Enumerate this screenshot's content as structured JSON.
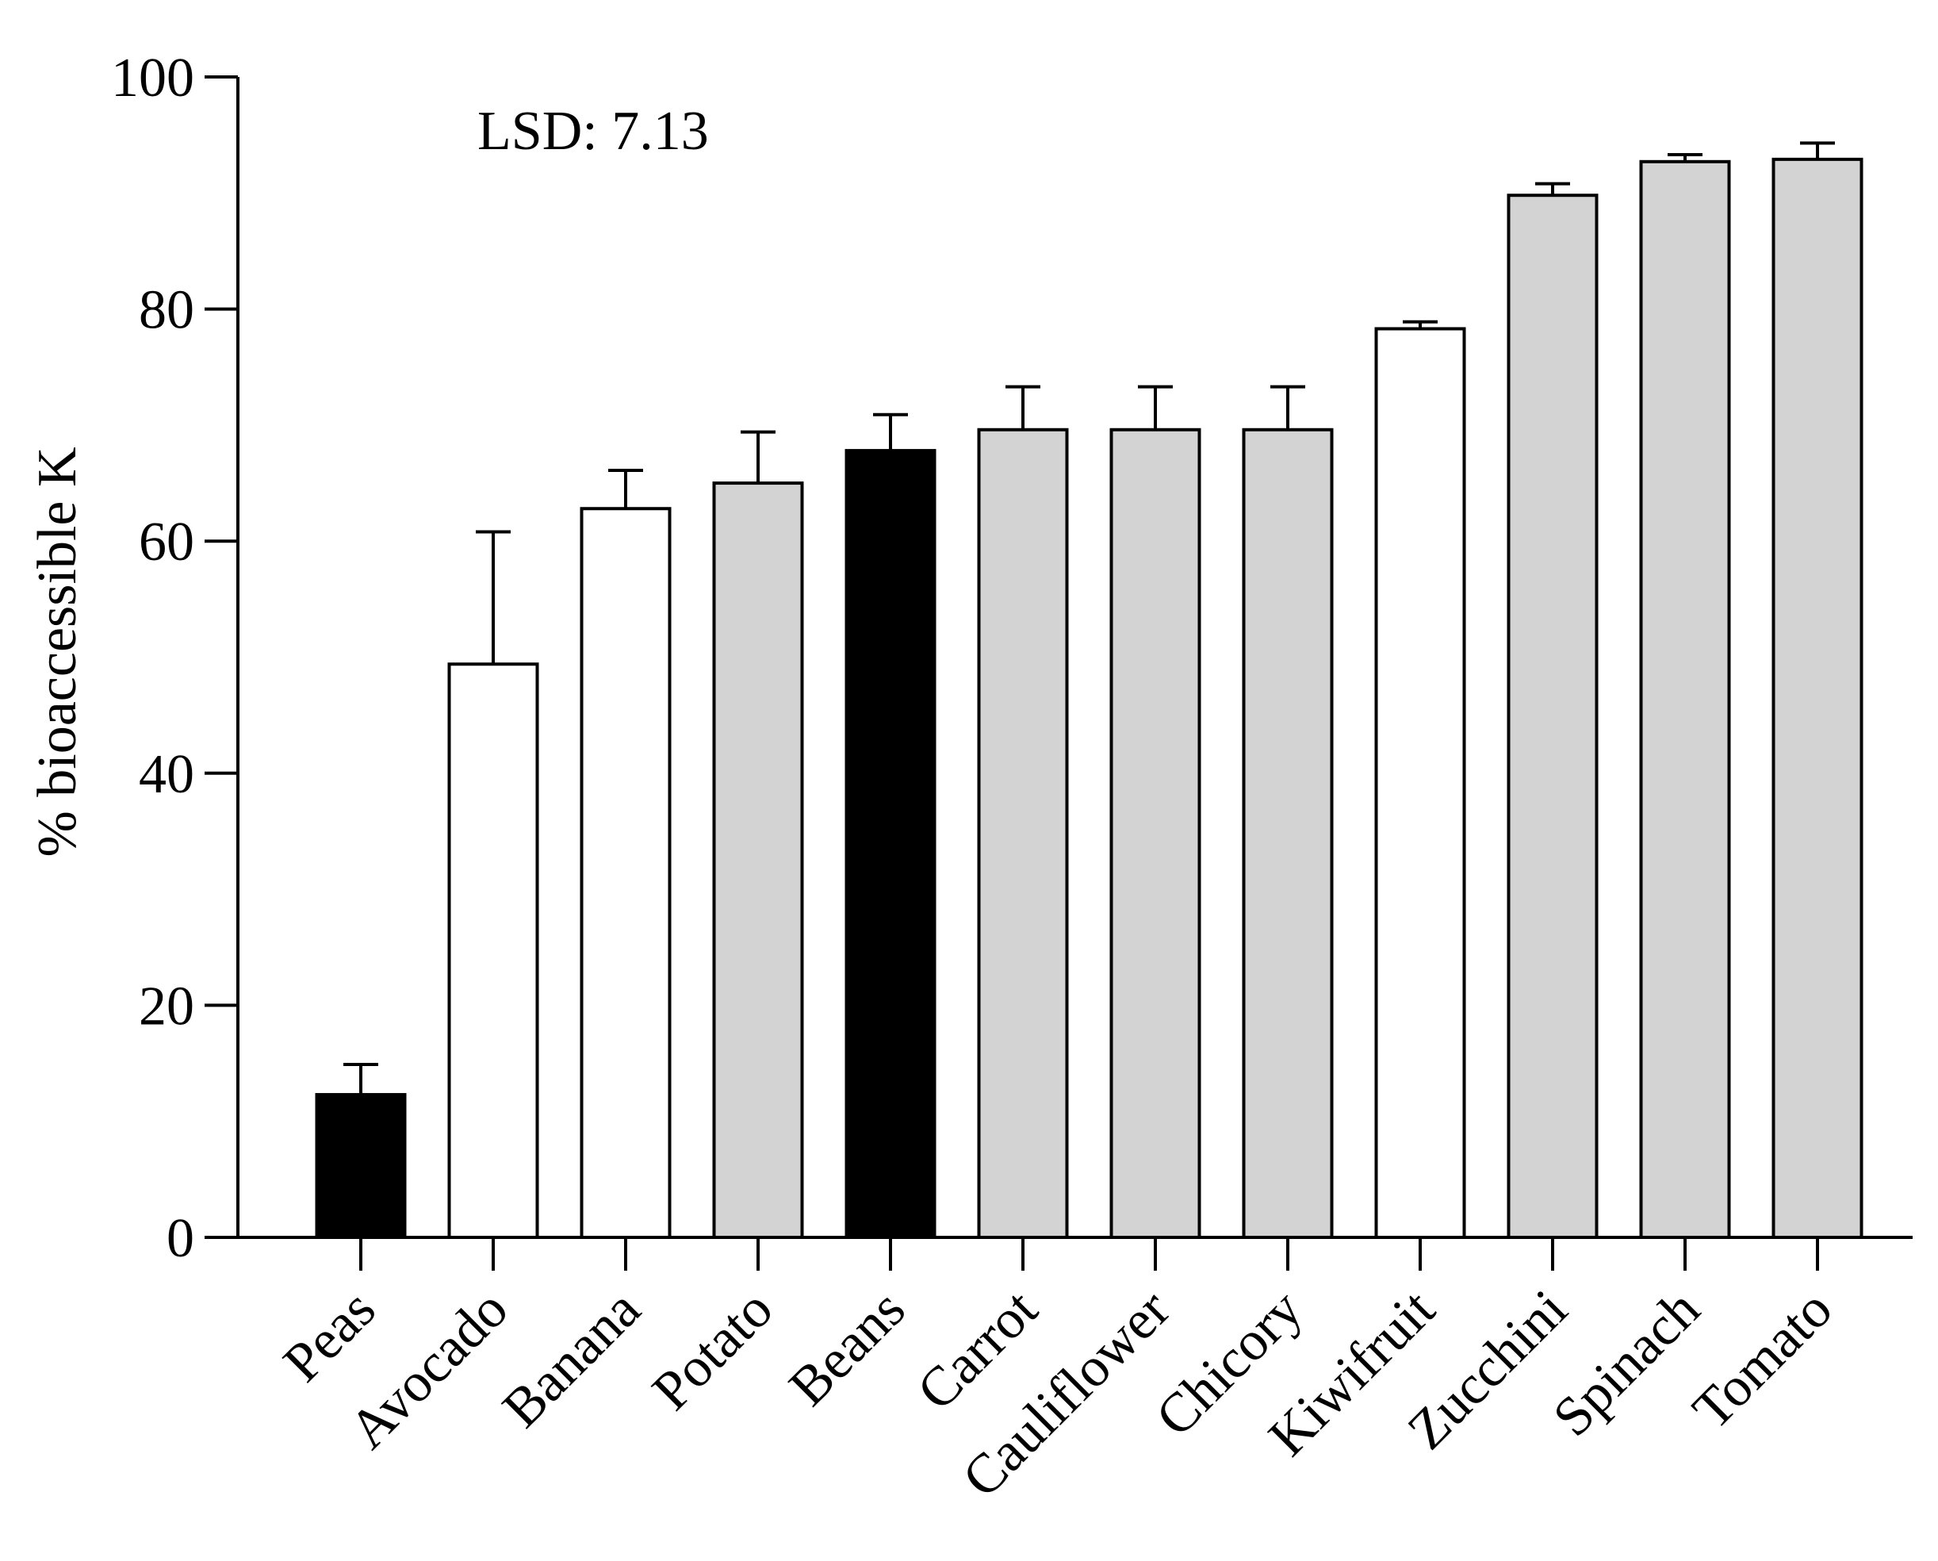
{
  "chart_data": {
    "type": "bar",
    "title": "",
    "xlabel": "",
    "ylabel": "% bioaccessible K",
    "ylim": [
      0,
      100
    ],
    "yticks": [
      0,
      20,
      40,
      60,
      80,
      100
    ],
    "grid": false,
    "legend": "none",
    "annotation": "LSD: 7.13",
    "categories": [
      "Peas",
      "Avocado",
      "Banana",
      "Potato",
      "Beans",
      "Carrot",
      "Cauliflower",
      "Chicory",
      "Kiwifruit",
      "Zucchini",
      "Spinach",
      "Tomato"
    ],
    "values": [
      12.3,
      49.4,
      62.8,
      65.0,
      67.8,
      69.6,
      69.6,
      69.6,
      78.3,
      89.8,
      92.7,
      92.9
    ],
    "errors": [
      2.6,
      11.4,
      3.3,
      4.4,
      3.1,
      3.7,
      3.7,
      3.7,
      0.6,
      1.0,
      0.6,
      1.4
    ],
    "colors": [
      "#000000",
      "#ffffff",
      "#ffffff",
      "#d3d3d3",
      "#000000",
      "#d3d3d3",
      "#d3d3d3",
      "#d3d3d3",
      "#ffffff",
      "#d3d3d3",
      "#d3d3d3",
      "#d3d3d3"
    ]
  }
}
